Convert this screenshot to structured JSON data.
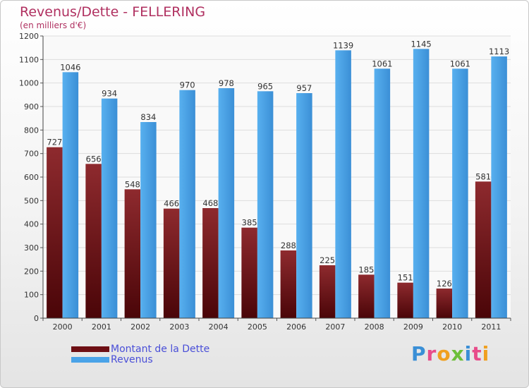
{
  "title": "Revenus/Dette - FELLERING",
  "subtitle": "(en milliers d'€)",
  "colors": {
    "debt": "#7a1a1e",
    "revenue": "#4aa3e8",
    "title": "#b03060",
    "legend_text": "#4a4fd8"
  },
  "legend": [
    {
      "label": "Montant de la Dette",
      "color": "#6e0f14"
    },
    {
      "label": "Revenus",
      "color": "#4aa3e8"
    }
  ],
  "logo": {
    "text": "Proxiti"
  },
  "chart_data": {
    "type": "bar",
    "title": "Revenus/Dette - FELLERING",
    "ylabel": "(en milliers d'€)",
    "xlabel": "",
    "categories": [
      "2000",
      "2001",
      "2002",
      "2003",
      "2004",
      "2005",
      "2006",
      "2007",
      "2008",
      "2009",
      "2010",
      "2011"
    ],
    "series": [
      {
        "name": "Montant de la Dette",
        "values": [
          727,
          656,
          548,
          466,
          468,
          385,
          288,
          225,
          185,
          151,
          126,
          581
        ]
      },
      {
        "name": "Revenus",
        "values": [
          1046,
          934,
          834,
          970,
          978,
          965,
          957,
          1139,
          1061,
          1145,
          1061,
          1113
        ]
      }
    ],
    "ylim": [
      0,
      1200
    ],
    "yticks": [
      0,
      100,
      200,
      300,
      400,
      500,
      600,
      700,
      800,
      900,
      1000,
      1100,
      1200
    ],
    "grid": true,
    "legend_position": "bottom-left"
  }
}
